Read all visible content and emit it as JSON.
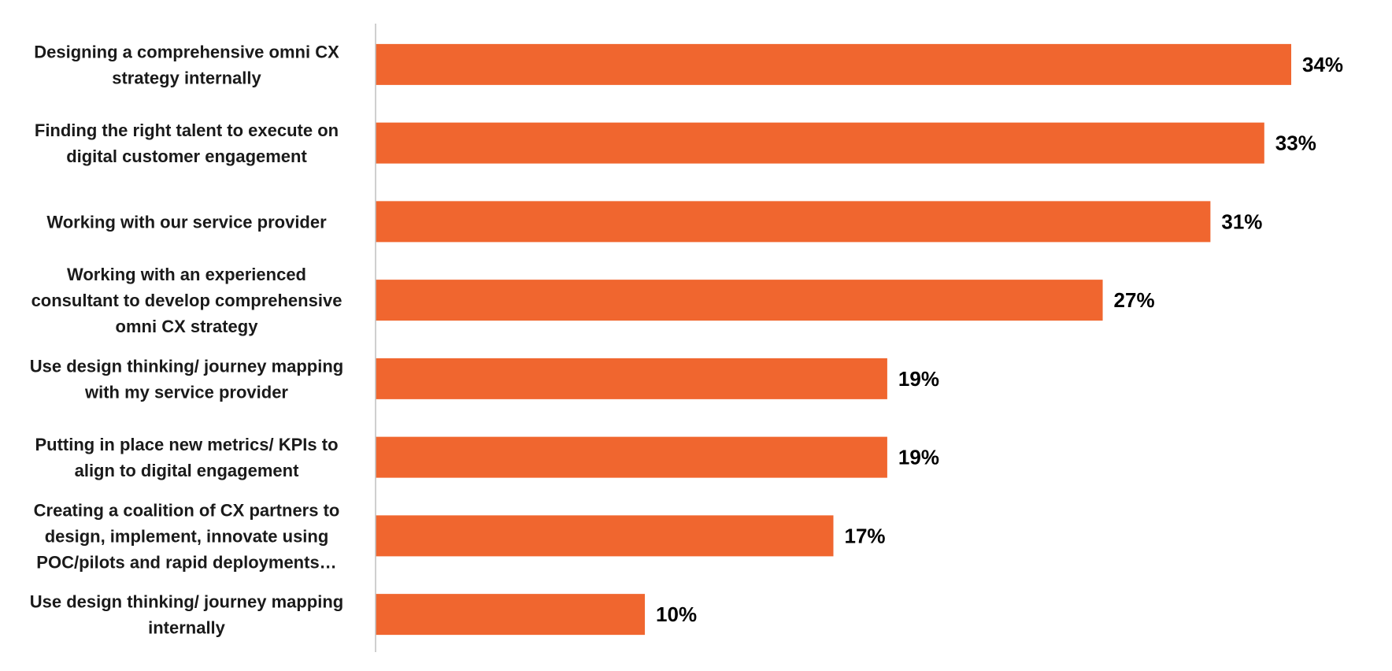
{
  "chart_data": {
    "type": "bar",
    "orientation": "horizontal",
    "categories": [
      [
        "Designing a comprehensive omni CX",
        "strategy internally"
      ],
      [
        "Finding the right talent to execute on",
        "digital customer engagement"
      ],
      [
        "Working with our service provider"
      ],
      [
        "Working with an experienced",
        "consultant to develop comprehensive",
        "omni CX strategy"
      ],
      [
        "Use design thinking/ journey mapping",
        "with my service provider"
      ],
      [
        "Putting in place new metrics/ KPIs to",
        "align to digital engagement"
      ],
      [
        "Creating a coalition of CX partners to",
        "design, implement, innovate using",
        "POC/pilots and rapid deployments…"
      ],
      [
        "Use design thinking/ journey mapping",
        "internally"
      ]
    ],
    "values": [
      34,
      33,
      31,
      27,
      19,
      19,
      17,
      10
    ],
    "data_labels": [
      "34%",
      "33%",
      "31%",
      "27%",
      "19%",
      "19%",
      "17%",
      "10%"
    ],
    "unit": "%",
    "xlim": [
      0,
      35
    ],
    "grid": false,
    "legend": "none",
    "bar_color": "#F0662F",
    "axis_color": "#bfbfbf"
  }
}
